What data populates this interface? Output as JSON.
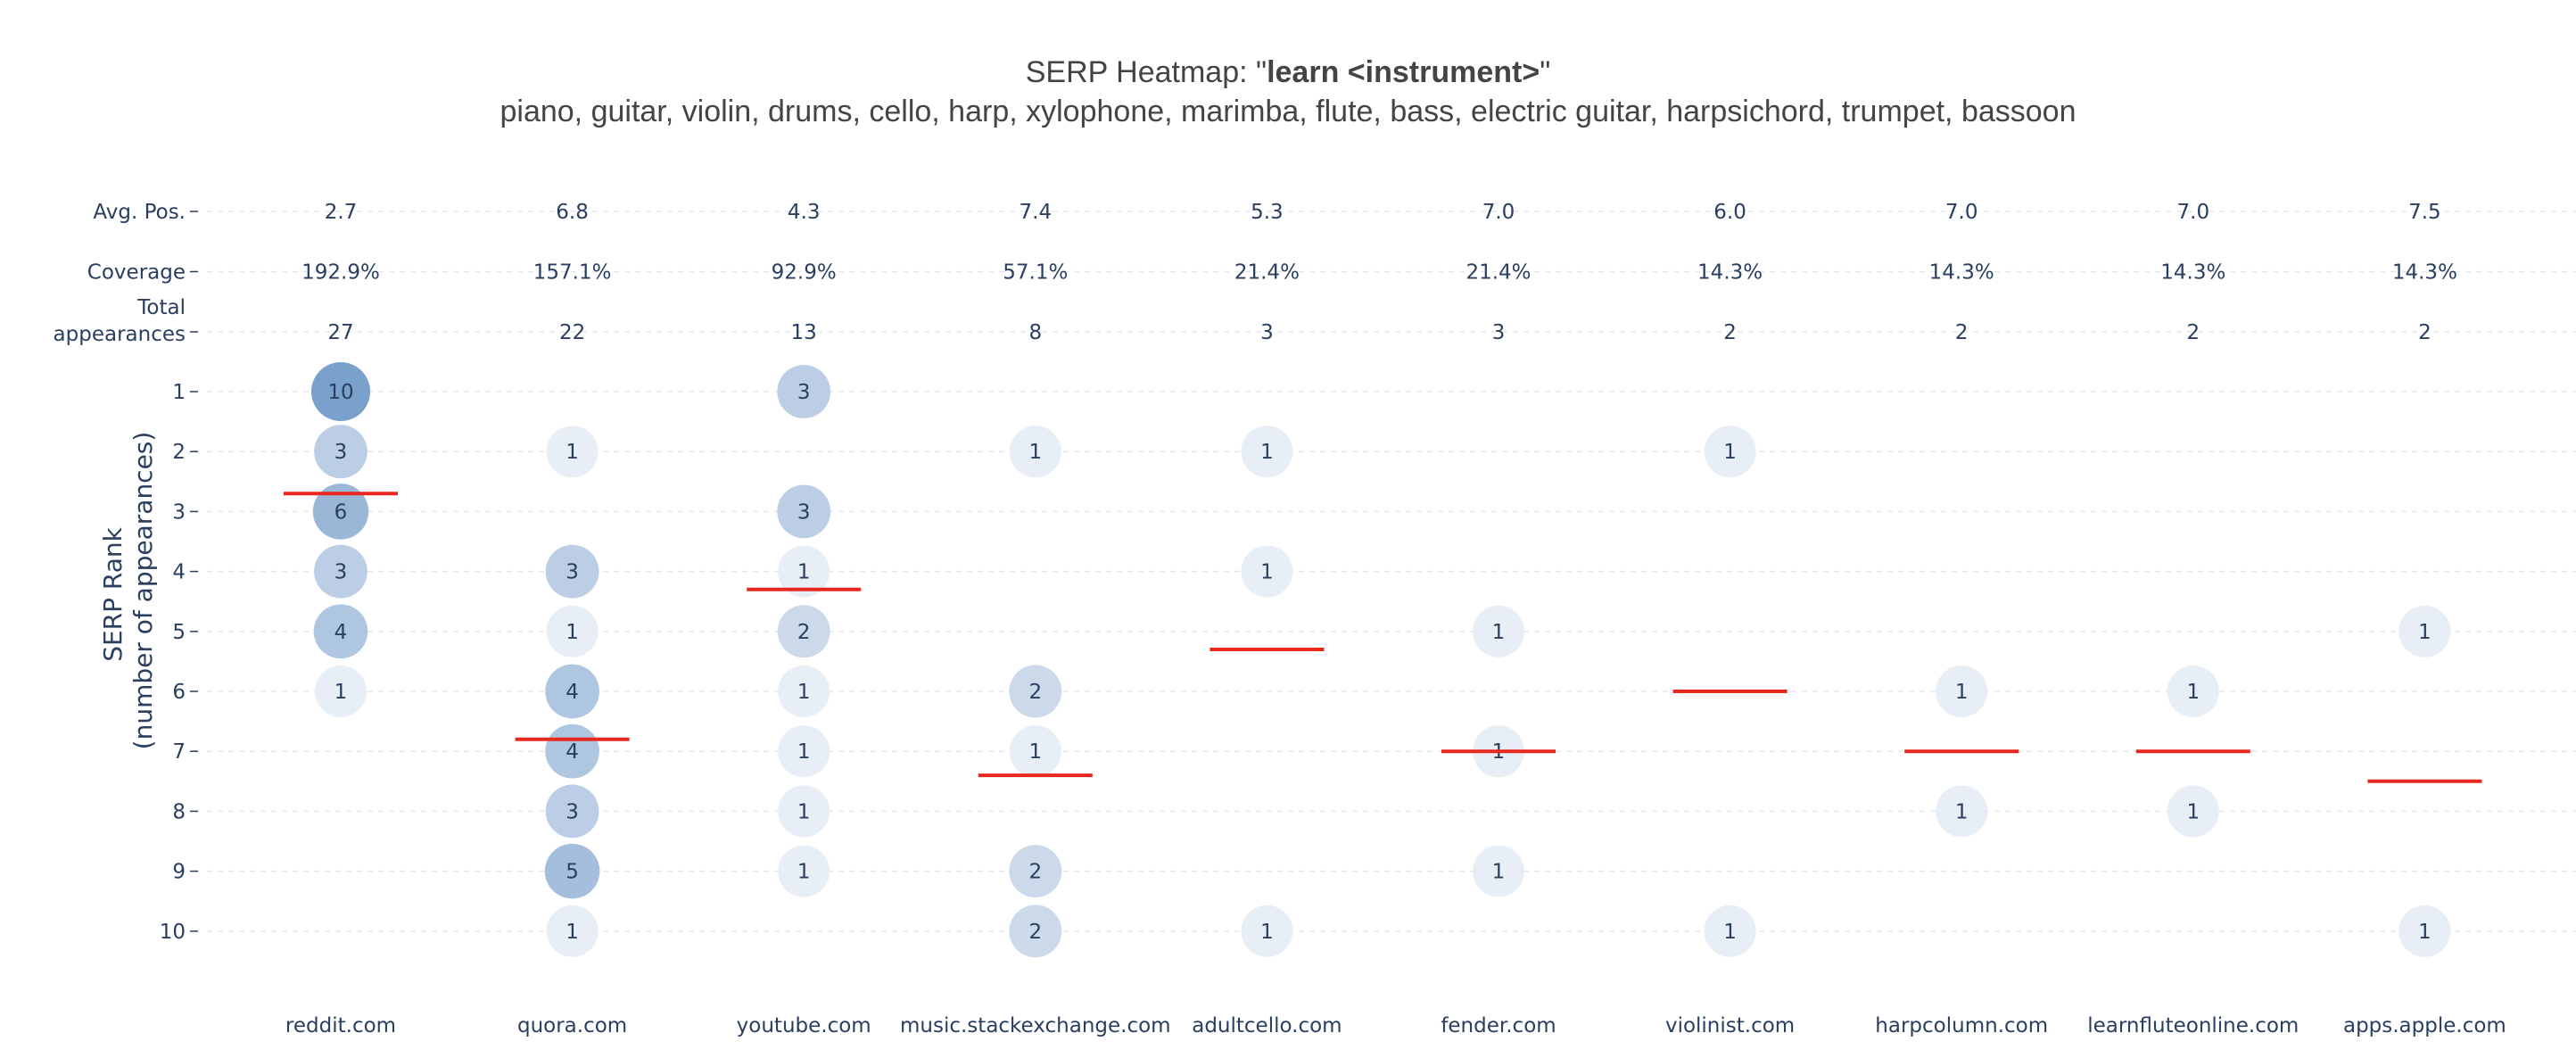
{
  "chart_data": {
    "type": "heatmap",
    "title_prefix": "SERP Heatmap: \"",
    "title_bold": "learn <instrument>",
    "title_suffix": "\"",
    "subtitle": "piano, guitar, violin, drums, cello, harp, xylophone, marimba, flute, bass, electric guitar, harpsichord, trumpet, bassoon",
    "ylabel_line1": "SERP Rank",
    "ylabel_line2": "(number of appearances)",
    "domains": [
      "reddit.com",
      "quora.com",
      "youtube.com",
      "music.stackexchange.com",
      "adultcello.com",
      "fender.com",
      "violinist.com",
      "harpcolumn.com",
      "learnfluteonline.com",
      "apps.apple.com"
    ],
    "stat_rows": [
      {
        "label": "Avg. Pos.",
        "values": [
          "2.7",
          "6.8",
          "4.3",
          "7.4",
          "5.3",
          "7.0",
          "6.0",
          "7.0",
          "7.0",
          "7.5"
        ]
      },
      {
        "label": "Coverage",
        "values": [
          "192.9%",
          "157.1%",
          "92.9%",
          "57.1%",
          "21.4%",
          "21.4%",
          "14.3%",
          "14.3%",
          "14.3%",
          "14.3%"
        ]
      },
      {
        "label_lines": [
          "Total",
          "appearances"
        ],
        "values": [
          "27",
          "22",
          "13",
          "8",
          "3",
          "3",
          "2",
          "2",
          "2",
          "2"
        ]
      }
    ],
    "ranks": [
      "1",
      "2",
      "3",
      "4",
      "5",
      "6",
      "7",
      "8",
      "9",
      "10"
    ],
    "avg_positions": [
      2.7,
      6.8,
      4.3,
      7.4,
      5.3,
      7.0,
      6.0,
      7.0,
      7.0,
      7.5
    ],
    "counts": [
      [
        10,
        0,
        3,
        0,
        0,
        0,
        0,
        0,
        0,
        0
      ],
      [
        3,
        1,
        0,
        1,
        1,
        0,
        1,
        0,
        0,
        0
      ],
      [
        6,
        0,
        3,
        0,
        0,
        0,
        0,
        0,
        0,
        0
      ],
      [
        3,
        3,
        1,
        0,
        1,
        0,
        0,
        0,
        0,
        0
      ],
      [
        4,
        1,
        2,
        0,
        0,
        1,
        0,
        0,
        0,
        1
      ],
      [
        1,
        4,
        1,
        2,
        0,
        0,
        0,
        1,
        1,
        0
      ],
      [
        0,
        4,
        1,
        1,
        0,
        1,
        0,
        0,
        0,
        0
      ],
      [
        0,
        3,
        1,
        0,
        0,
        0,
        0,
        1,
        1,
        0
      ],
      [
        0,
        5,
        1,
        2,
        0,
        1,
        0,
        0,
        0,
        0
      ],
      [
        0,
        1,
        0,
        2,
        1,
        0,
        1,
        0,
        0,
        1
      ]
    ],
    "colors": {
      "bubble_light": "#e8eef6",
      "bubble_dark": "#7aa0cc",
      "avg_line": "#e8281e",
      "grid": "#e3e7ee",
      "text": "#2a3f5f",
      "title": "#444444"
    }
  }
}
